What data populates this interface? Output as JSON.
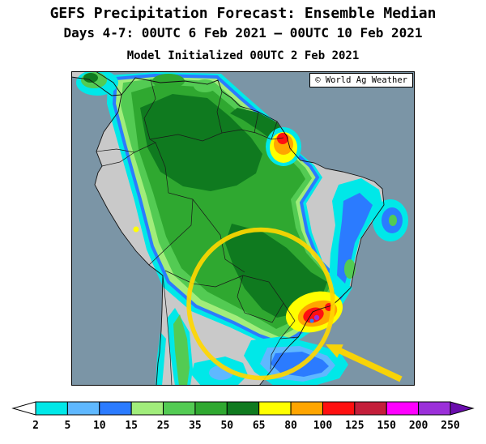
{
  "header": {
    "title": "GEFS Precipitation Forecast: Ensemble Median",
    "subtitle": "Days 4-7: 00UTC 6 Feb 2021 — 00UTC 10 Feb 2021",
    "initialized": "Model Initialized 00UTC 2 Feb 2021"
  },
  "map": {
    "region": "South America",
    "watermark": "© World Ag Weather",
    "ocean_color": "#7B95A6",
    "dry_land_color": "#C9C9C9",
    "annotations": {
      "highlight_circle_color": "#FFD700",
      "arrow_color": "#FFD700",
      "highlight_area": "southern Brazil heavy precipitation"
    }
  },
  "colorbar": {
    "levels": [
      "2",
      "5",
      "10",
      "15",
      "25",
      "35",
      "50",
      "65",
      "80",
      "100",
      "125",
      "150",
      "200",
      "250"
    ],
    "colors": [
      "#00E8E8",
      "#5FB8FF",
      "#2B7BFF",
      "#A1ED7B",
      "#53CB53",
      "#2FA830",
      "#0F7A1F",
      "#FFFF00",
      "#FFA500",
      "#FF1010",
      "#C41E3A",
      "#FF00FF",
      "#9B30D9"
    ],
    "left_arrow_color": "#FFFFFF",
    "right_arrow_color": "#6A0DAD"
  },
  "chart_data": {
    "type": "heatmap",
    "title": "GEFS Precipitation Forecast: Ensemble Median",
    "valid_period": "00UTC 6 Feb 2021 — 00UTC 10 Feb 2021",
    "initialization": "00UTC 2 Feb 2021",
    "scale_levels": [
      2,
      5,
      10,
      15,
      25,
      35,
      50,
      65,
      80,
      100,
      125,
      150,
      200,
      250
    ],
    "legend_position": "bottom"
  }
}
